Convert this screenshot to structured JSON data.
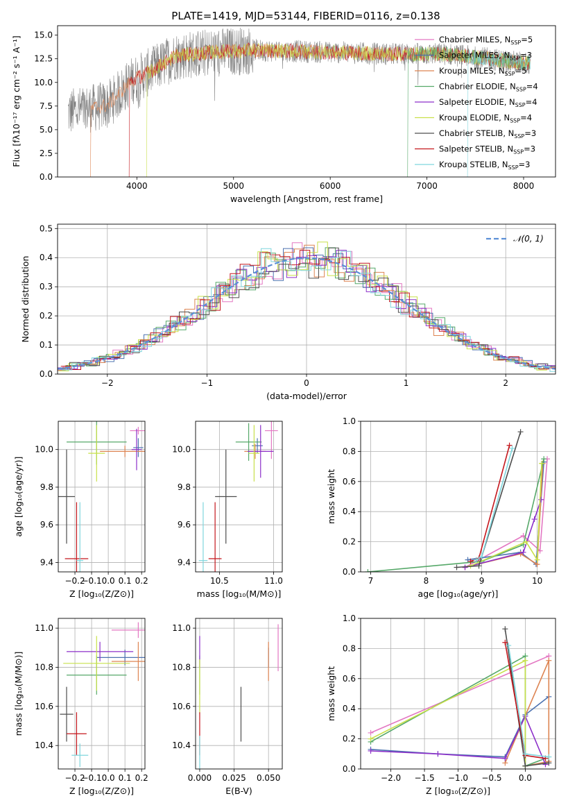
{
  "figure": {
    "title": "PLATE=1419, MJD=53144, FIBERID=0116, z=0.138"
  },
  "colors": {
    "Chabrier MILES": "#e377c2",
    "Salpeter MILES": "#4c72b0",
    "Kroupa MILES": "#dd8452",
    "Chabrier ELODIE": "#55a868",
    "Salpeter ELODIE": "#8c2fc9",
    "Kroupa ELODIE": "#c8e04a",
    "Chabrier STELIB": "#4d4d4d",
    "Salpeter STELIB": "#c4161c",
    "Kroupa STELIB": "#7fd6dd",
    "data": "#808080",
    "gaussian": "#5b8fd6"
  },
  "chart_data": [
    {
      "id": "spectrum",
      "type": "line",
      "xlabel": "wavelength [Angstrom, rest frame]",
      "ylabel": "Flux [fλ10⁻¹⁷ erg cm⁻² s⁻¹ A⁻¹]",
      "xlim": [
        3180,
        8330
      ],
      "ylim": [
        0,
        16
      ],
      "xticks": [
        "4000",
        "5000",
        "6000",
        "7000",
        "8000"
      ],
      "yticks": [
        "0.0",
        "2.5",
        "5.0",
        "7.5",
        "10.0",
        "12.5",
        "15.0"
      ],
      "legend_position": "right",
      "legend": [
        {
          "key": "Chabrier MILES",
          "label": "Chabrier MILES, N",
          "n": "=5"
        },
        {
          "key": "Salpeter MILES",
          "label": "Salpeter MILES, N",
          "n": "=3"
        },
        {
          "key": "Kroupa MILES",
          "label": "Kroupa MILES, N",
          "n": "=5"
        },
        {
          "key": "Chabrier ELODIE",
          "label": "Chabrier ELODIE, N",
          "n": "=4"
        },
        {
          "key": "Salpeter ELODIE",
          "label": "Salpeter ELODIE, N",
          "n": "=4"
        },
        {
          "key": "Kroupa ELODIE",
          "label": "Kroupa ELODIE, N",
          "n": "=4"
        },
        {
          "key": "Chabrier STELIB",
          "label": "Chabrier STELIB, N",
          "n": "=3"
        },
        {
          "key": "Salpeter STELIB",
          "label": "Salpeter STELIB, N",
          "n": "=3"
        },
        {
          "key": "Kroupa STELIB",
          "label": "Kroupa STELIB, N",
          "n": "=3"
        }
      ],
      "data_range": [
        3290,
        8070
      ],
      "continuum": [
        [
          3290,
          6.8
        ],
        [
          3700,
          7.6
        ],
        [
          3950,
          10.2
        ],
        [
          4150,
          11.2
        ],
        [
          4400,
          12.8
        ],
        [
          4800,
          13.2
        ],
        [
          5200,
          13.4
        ],
        [
          6000,
          13.2
        ],
        [
          6600,
          13.0
        ],
        [
          7200,
          13.0
        ],
        [
          8070,
          12.0
        ]
      ],
      "model_end": [
        3520,
        3920,
        4100,
        6800,
        7420
      ]
    },
    {
      "id": "residuals",
      "type": "histogram",
      "xlabel": "(data-model)/error",
      "ylabel": "Normed distribution",
      "xlim": [
        -2.5,
        2.5
      ],
      "ylim": [
        0,
        0.515
      ],
      "xticks": [
        "−2",
        "−1",
        "0",
        "1",
        "2"
      ],
      "yticks": [
        "0.0",
        "0.1",
        "0.2",
        "0.3",
        "0.4",
        "0.5"
      ],
      "gaussian_label": "𝒩(0, 1)",
      "gaussian": {
        "mean": 0,
        "sigma": 1
      },
      "bin_width": 0.1,
      "legend_position": "top-right"
    },
    {
      "id": "age-z",
      "type": "scatter",
      "xlabel": "Z [log₁₀(Z/Z⊙)]",
      "ylabel": "age  [log₁₀(age/yr)]",
      "xlim": [
        -0.3,
        0.22
      ],
      "ylim": [
        9.35,
        10.15
      ],
      "xticks": [
        -0.2,
        -0.1,
        0.0,
        0.1,
        0.2
      ],
      "xtick_labels": [
        "−0.2",
        "−0.1",
        "0.0",
        "0.1",
        "0.2"
      ],
      "yticks": [
        9.4,
        9.6,
        9.8,
        10.0
      ],
      "ytick_labels": [
        "9.4",
        "9.6",
        "9.8",
        "10.0"
      ],
      "points": [
        {
          "key": "Chabrier MILES",
          "x": 0.18,
          "xerr": 0.05,
          "y": 10.1,
          "yerr": 0.02
        },
        {
          "key": "Salpeter MILES",
          "x": 0.18,
          "xerr": 0.03,
          "y": 10.01,
          "yerr": 0.05
        },
        {
          "key": "Kroupa MILES",
          "x": 0.1,
          "xerr": 0.15,
          "y": 9.99,
          "yerr": 0.03
        },
        {
          "key": "Chabrier ELODIE",
          "x": -0.07,
          "xerr": 0.18,
          "y": 10.04,
          "yerr": 0.12
        },
        {
          "key": "Salpeter ELODIE",
          "x": 0.17,
          "xerr": 0.03,
          "y": 10.0,
          "yerr": 0.11
        },
        {
          "key": "Kroupa ELODIE",
          "x": -0.07,
          "xerr": 0.05,
          "y": 9.98,
          "yerr": 0.15
        },
        {
          "key": "Chabrier STELIB",
          "x": -0.25,
          "xerr": 0.05,
          "y": 9.75,
          "yerr": 0.25
        },
        {
          "key": "Salpeter STELIB",
          "x": -0.19,
          "xerr": 0.07,
          "y": 9.42,
          "yerr": 0.3
        },
        {
          "key": "Kroupa STELIB",
          "x": -0.17,
          "xerr": 0.02,
          "y": 9.41,
          "yerr": 0.31
        }
      ]
    },
    {
      "id": "age-mass",
      "type": "scatter",
      "xlabel": "mass [log₁₀(M/M⊙)]",
      "ylabel": "",
      "xlim": [
        10.28,
        11.08
      ],
      "ylim": [
        9.35,
        10.15
      ],
      "xticks": [
        10.5,
        11.0
      ],
      "xtick_labels": [
        "10.5",
        "11.0"
      ],
      "yticks": [
        9.4,
        9.6,
        9.8,
        10.0
      ],
      "ytick_labels": [
        "9.4",
        "9.6",
        "9.8",
        "10.0"
      ],
      "points": [
        {
          "key": "Chabrier MILES",
          "x": 10.98,
          "xerr": 0.06,
          "y": 10.1,
          "yerr": 0.15
        },
        {
          "key": "Salpeter MILES",
          "x": 10.85,
          "xerr": 0.05,
          "y": 10.02,
          "yerr": 0.04
        },
        {
          "key": "Kroupa MILES",
          "x": 10.83,
          "xerr": 0.1,
          "y": 9.99,
          "yerr": 0.04
        },
        {
          "key": "Chabrier ELODIE",
          "x": 10.77,
          "xerr": 0.12,
          "y": 10.04,
          "yerr": 0.1
        },
        {
          "key": "Salpeter ELODIE",
          "x": 10.88,
          "xerr": 0.12,
          "y": 9.99,
          "yerr": 0.14
        },
        {
          "key": "Kroupa ELODIE",
          "x": 10.82,
          "xerr": 0.05,
          "y": 9.98,
          "yerr": 0.15
        },
        {
          "key": "Chabrier STELIB",
          "x": 10.56,
          "xerr": 0.1,
          "y": 9.75,
          "yerr": 0.25
        },
        {
          "key": "Salpeter STELIB",
          "x": 10.46,
          "xerr": 0.06,
          "y": 9.42,
          "yerr": 0.3
        },
        {
          "key": "Kroupa STELIB",
          "x": 10.35,
          "xerr": 0.04,
          "y": 9.41,
          "yerr": 0.31
        }
      ]
    },
    {
      "id": "mass-z",
      "type": "scatter",
      "xlabel": "Z [log₁₀(Z/Z⊙)]",
      "ylabel": "mass [log₁₀(M/M⊙)]",
      "xlim": [
        -0.3,
        0.22
      ],
      "ylim": [
        10.28,
        11.05
      ],
      "xticks": [
        -0.2,
        -0.1,
        0.0,
        0.1,
        0.2
      ],
      "xtick_labels": [
        "−0.2",
        "−0.1",
        "0.0",
        "0.1",
        "0.2"
      ],
      "yticks": [
        10.4,
        10.6,
        10.8,
        11.0
      ],
      "ytick_labels": [
        "10.4",
        "10.6",
        "10.8",
        "11.0"
      ],
      "points": [
        {
          "key": "Chabrier MILES",
          "x": 0.18,
          "xerr": 0.16,
          "y": 10.99,
          "yerr": 0.04
        },
        {
          "key": "Salpeter MILES",
          "x": 0.1,
          "xerr": 0.17,
          "y": 10.85,
          "yerr": 0.04
        },
        {
          "key": "Kroupa MILES",
          "x": 0.18,
          "xerr": 0.16,
          "y": 10.83,
          "yerr": 0.1
        },
        {
          "key": "Chabrier ELODIE",
          "x": -0.07,
          "xerr": 0.18,
          "y": 10.76,
          "yerr": 0.1
        },
        {
          "key": "Salpeter ELODIE",
          "x": -0.05,
          "xerr": 0.2,
          "y": 10.88,
          "yerr": 0.05
        },
        {
          "key": "Kroupa ELODIE",
          "x": -0.07,
          "xerr": 0.2,
          "y": 10.82,
          "yerr": 0.14
        },
        {
          "key": "Chabrier STELIB",
          "x": -0.25,
          "xerr": 0.04,
          "y": 10.56,
          "yerr": 0.14
        },
        {
          "key": "Salpeter STELIB",
          "x": -0.19,
          "xerr": 0.06,
          "y": 10.46,
          "yerr": 0.11
        },
        {
          "key": "Kroupa STELIB",
          "x": -0.17,
          "xerr": 0.05,
          "y": 10.35,
          "yerr": 0.06
        }
      ]
    },
    {
      "id": "mass-ebv",
      "type": "scatter",
      "xlabel": "E(B-V)",
      "ylabel": "",
      "xlim": [
        -0.003,
        0.06
      ],
      "ylim": [
        10.28,
        11.05
      ],
      "xticks": [
        0.0,
        0.025,
        0.05
      ],
      "xtick_labels": [
        "0.000",
        "0.025",
        "0.050"
      ],
      "yticks": [
        10.4,
        10.6,
        10.8,
        11.0
      ],
      "ytick_labels": [
        "10.4",
        "10.6",
        "10.8",
        "11.0"
      ],
      "points": [
        {
          "key": "Chabrier MILES",
          "x": 0.057,
          "xerr": 0,
          "y": 10.9,
          "yerr": 0.12
        },
        {
          "key": "Salpeter MILES",
          "x": 0.05,
          "xerr": 0,
          "y": 10.85,
          "yerr": 0.05
        },
        {
          "key": "Kroupa MILES",
          "x": 0.05,
          "xerr": 0,
          "y": 10.83,
          "yerr": 0.1
        },
        {
          "key": "Chabrier ELODIE",
          "x": 0.0,
          "xerr": 0,
          "y": 10.76,
          "yerr": 0.1
        },
        {
          "key": "Salpeter ELODIE",
          "x": 0.0,
          "xerr": 0,
          "y": 10.88,
          "yerr": 0.08
        },
        {
          "key": "Kroupa ELODIE",
          "x": 0.0,
          "xerr": 0,
          "y": 10.7,
          "yerr": 0.14
        },
        {
          "key": "Chabrier STELIB",
          "x": 0.03,
          "xerr": 0,
          "y": 10.56,
          "yerr": 0.14
        },
        {
          "key": "Salpeter STELIB",
          "x": 0.0,
          "xerr": 0,
          "y": 10.46,
          "yerr": 0.11
        },
        {
          "key": "Kroupa STELIB",
          "x": 0.0,
          "xerr": 0,
          "y": 10.35,
          "yerr": 0.1
        }
      ]
    },
    {
      "id": "weight-age",
      "type": "line",
      "xlabel": "age  [log₁₀(age/yr)]",
      "ylabel": "mass weight",
      "xlim": [
        6.82,
        10.33
      ],
      "ylim": [
        0,
        1
      ],
      "xticks": [
        7,
        8,
        9,
        10
      ],
      "xtick_labels": [
        "7",
        "8",
        "9",
        "10"
      ],
      "yticks": [
        0,
        0.2,
        0.4,
        0.6,
        0.8,
        1.0
      ],
      "ytick_labels": [
        "0.0",
        "0.2",
        "0.4",
        "0.6",
        "0.8",
        "1.0"
      ],
      "series": [
        {
          "key": "Chabrier MILES",
          "x": [
            8.7,
            9.75,
            10.05,
            10.18
          ],
          "y": [
            0.03,
            0.24,
            0.14,
            0.75
          ]
        },
        {
          "key": "Salpeter MILES",
          "x": [
            8.75,
            9.7,
            9.98,
            10.12
          ],
          "y": [
            0.08,
            0.13,
            0.05,
            0.73
          ]
        },
        {
          "key": "Kroupa MILES",
          "x": [
            8.7,
            9.7,
            10.0,
            10.1
          ],
          "y": [
            0.03,
            0.12,
            0.05,
            0.72
          ]
        },
        {
          "key": "Chabrier ELODIE",
          "x": [
            6.95,
            9.0,
            9.75,
            10.12
          ],
          "y": [
            0.0,
            0.07,
            0.18,
            0.75
          ]
        },
        {
          "key": "Salpeter ELODIE",
          "x": [
            8.7,
            9.75,
            9.95,
            10.07
          ],
          "y": [
            0.03,
            0.13,
            0.35,
            0.48
          ]
        },
        {
          "key": "Kroupa ELODIE",
          "x": [
            8.8,
            9.8,
            10.0,
            10.08
          ],
          "y": [
            0.04,
            0.2,
            0.08,
            0.72
          ]
        },
        {
          "key": "Chabrier STELIB",
          "x": [
            8.55,
            8.95,
            9.7
          ],
          "y": [
            0.03,
            0.04,
            0.93
          ]
        },
        {
          "key": "Salpeter STELIB",
          "x": [
            8.8,
            8.95,
            9.5
          ],
          "y": [
            0.07,
            0.09,
            0.84
          ]
        },
        {
          "key": "Kroupa STELIB",
          "x": [
            8.9,
            9.0,
            9.55
          ],
          "y": [
            0.08,
            0.1,
            0.82
          ]
        }
      ]
    },
    {
      "id": "weight-z",
      "type": "line",
      "xlabel": "Z [log₁₀(Z/Z⊙)]",
      "ylabel": "mass weight",
      "xlim": [
        -2.45,
        0.45
      ],
      "ylim": [
        0,
        1
      ],
      "xticks": [
        -2.0,
        -1.5,
        -1.0,
        -0.5,
        0.0
      ],
      "xtick_labels": [
        "−2.0",
        "−1.5",
        "−1.0",
        "−0.5",
        "0.0"
      ],
      "yticks": [
        0,
        0.2,
        0.4,
        0.6,
        0.8,
        1.0
      ],
      "ytick_labels": [
        "0.0",
        "0.2",
        "0.4",
        "0.6",
        "0.8",
        "1.0"
      ],
      "series": [
        {
          "key": "Chabrier MILES",
          "x": [
            -2.3,
            0.35
          ],
          "y": [
            0.24,
            0.75
          ]
        },
        {
          "key": "Salpeter MILES",
          "x": [
            -2.3,
            -1.3,
            -0.3,
            0.0,
            0.35
          ],
          "y": [
            0.13,
            0.1,
            0.08,
            0.36,
            0.48
          ]
        },
        {
          "key": "Kroupa MILES",
          "x": [
            -0.3,
            0.35,
            0.35,
            0.0
          ],
          "y": [
            0.04,
            0.72,
            0.05,
            0.02
          ]
        },
        {
          "key": "Chabrier ELODIE",
          "x": [
            -2.3,
            0.0,
            0.0,
            0.3
          ],
          "y": [
            0.18,
            0.75,
            0.02,
            0.07
          ]
        },
        {
          "key": "Salpeter ELODIE",
          "x": [
            -2.3,
            -1.3,
            -0.3,
            0.0,
            0.3
          ],
          "y": [
            0.12,
            0.1,
            0.07,
            0.35,
            0.03
          ]
        },
        {
          "key": "Kroupa ELODIE",
          "x": [
            -2.3,
            0.0,
            0.0
          ],
          "y": [
            0.2,
            0.72,
            0.02
          ]
        },
        {
          "key": "Chabrier STELIB",
          "x": [
            -0.3,
            0.0,
            0.35
          ],
          "y": [
            0.93,
            0.02,
            0.04
          ]
        },
        {
          "key": "Salpeter STELIB",
          "x": [
            -0.3,
            0.0,
            0.3
          ],
          "y": [
            0.84,
            0.09,
            0.07
          ]
        },
        {
          "key": "Kroupa STELIB",
          "x": [
            -0.25,
            0.0,
            0.35
          ],
          "y": [
            0.82,
            0.1,
            0.08
          ]
        }
      ]
    }
  ]
}
